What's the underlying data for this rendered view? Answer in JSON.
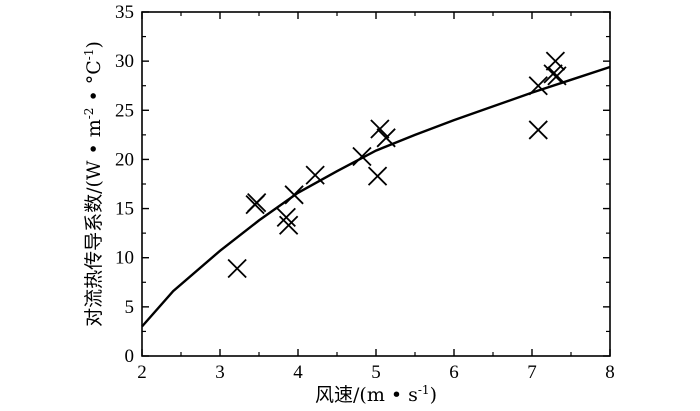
{
  "chart_data": {
    "type": "scatter",
    "xlabel_main": "风速/(m • s",
    "xlabel_sup": "-1",
    "xlabel_end": ")",
    "ylabel_main": "对流热传导系数/(W • m",
    "ylabel_sup1": "-2",
    "ylabel_mid": " • °C",
    "ylabel_sup2": "-1",
    "ylabel_end": ")",
    "xlim": [
      2,
      8
    ],
    "ylim": [
      0,
      35
    ],
    "x_ticks": [
      2,
      3,
      4,
      5,
      6,
      7,
      8
    ],
    "y_ticks": [
      0,
      5,
      10,
      15,
      20,
      25,
      30,
      35
    ],
    "grid": false,
    "series": [
      {
        "type": "scatter",
        "marker": "x",
        "points": [
          {
            "x": 3.22,
            "y": 8.9
          },
          {
            "x": 3.45,
            "y": 15.4
          },
          {
            "x": 3.47,
            "y": 15.6
          },
          {
            "x": 3.85,
            "y": 14.1
          },
          {
            "x": 3.88,
            "y": 13.3
          },
          {
            "x": 3.95,
            "y": 16.4
          },
          {
            "x": 4.22,
            "y": 18.4
          },
          {
            "x": 4.82,
            "y": 20.3
          },
          {
            "x": 5.02,
            "y": 18.3
          },
          {
            "x": 5.05,
            "y": 23.1
          },
          {
            "x": 5.13,
            "y": 22.2
          },
          {
            "x": 7.08,
            "y": 23.0
          },
          {
            "x": 7.08,
            "y": 27.5
          },
          {
            "x": 7.27,
            "y": 28.7
          },
          {
            "x": 7.3,
            "y": 30.0
          },
          {
            "x": 7.32,
            "y": 28.5
          }
        ]
      },
      {
        "type": "line",
        "points": [
          {
            "x": 2.0,
            "y": 3.0
          },
          {
            "x": 2.4,
            "y": 6.6
          },
          {
            "x": 3.0,
            "y": 10.7
          },
          {
            "x": 3.5,
            "y": 13.8
          },
          {
            "x": 4.0,
            "y": 16.6
          },
          {
            "x": 4.5,
            "y": 18.8
          },
          {
            "x": 5.0,
            "y": 20.9
          },
          {
            "x": 5.5,
            "y": 22.5
          },
          {
            "x": 6.0,
            "y": 24.0
          },
          {
            "x": 6.5,
            "y": 25.4
          },
          {
            "x": 7.0,
            "y": 26.8
          },
          {
            "x": 7.5,
            "y": 28.1
          },
          {
            "x": 8.0,
            "y": 29.4
          }
        ]
      }
    ]
  }
}
